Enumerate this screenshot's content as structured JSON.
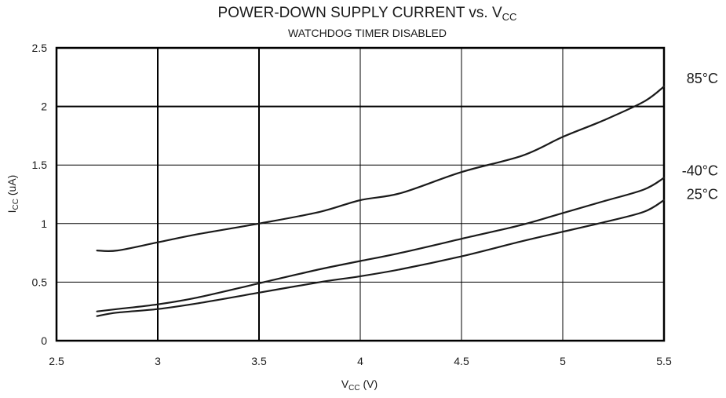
{
  "chart_data": {
    "type": "line",
    "title": "POWER-DOWN SUPPLY CURRENT vs. V",
    "title_sub": "CC",
    "subtitle": "WATCHDOG TIMER DISABLED",
    "xlabel": "V",
    "xlabel_sub": "CC",
    "xlabel_unit": " (V)",
    "ylabel": "I",
    "ylabel_sub": "CC",
    "ylabel_unit": " (uA)",
    "xlim": [
      2.5,
      5.5
    ],
    "ylim": [
      0,
      2.5
    ],
    "x_ticks": [
      2.5,
      3,
      3.5,
      4,
      4.5,
      5,
      5.5
    ],
    "x_tick_labels": [
      "2.5",
      "3",
      "3.5",
      "4",
      "4.5",
      "5",
      "5.5"
    ],
    "y_ticks": [
      0,
      0.5,
      1,
      1.5,
      2,
      2.5
    ],
    "y_tick_labels": [
      "0",
      "0.5",
      "1",
      "1.5",
      "2",
      "2.5"
    ],
    "grid": true,
    "series": [
      {
        "name": "85°C",
        "x": [
          2.7,
          2.8,
          3.0,
          3.2,
          3.5,
          3.8,
          4.0,
          4.2,
          4.5,
          4.8,
          5.0,
          5.2,
          5.4,
          5.5
        ],
        "values": [
          0.77,
          0.77,
          0.84,
          0.91,
          1.0,
          1.1,
          1.2,
          1.26,
          1.44,
          1.58,
          1.74,
          1.88,
          2.04,
          2.17
        ]
      },
      {
        "name": "-40°C",
        "x": [
          2.7,
          2.8,
          3.0,
          3.2,
          3.5,
          3.8,
          4.0,
          4.2,
          4.5,
          4.8,
          5.0,
          5.2,
          5.4,
          5.5
        ],
        "values": [
          0.25,
          0.27,
          0.31,
          0.37,
          0.49,
          0.61,
          0.68,
          0.75,
          0.87,
          0.99,
          1.09,
          1.19,
          1.29,
          1.39
        ]
      },
      {
        "name": "25°C",
        "x": [
          2.7,
          2.8,
          3.0,
          3.2,
          3.5,
          3.8,
          4.0,
          4.2,
          4.5,
          4.8,
          5.0,
          5.2,
          5.4,
          5.5
        ],
        "values": [
          0.21,
          0.24,
          0.27,
          0.32,
          0.41,
          0.5,
          0.55,
          0.61,
          0.72,
          0.85,
          0.93,
          1.01,
          1.1,
          1.2
        ]
      }
    ]
  }
}
